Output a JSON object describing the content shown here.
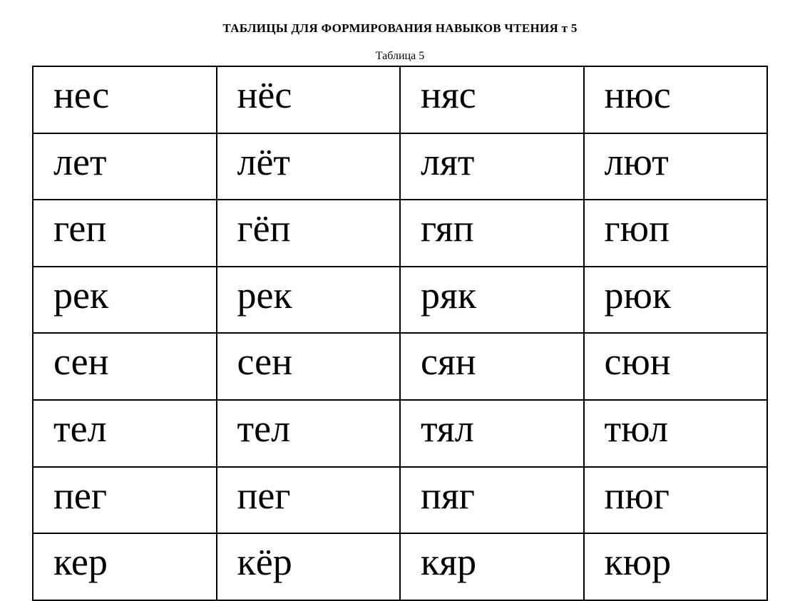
{
  "title": "ТАБЛИЦЫ ДЛЯ ФОРМИРОВАНИЯ НАВЫКОВ ЧТЕНИЯ т 5",
  "subtitle": "Таблица 5",
  "table": {
    "columns": 4,
    "column_width_percent": 25,
    "cell_fontsize": 54,
    "cell_font_family": "Times New Roman",
    "cell_color": "#000000",
    "border_color": "#000000",
    "border_width": 2,
    "background_color": "#ffffff",
    "text_align": "left",
    "rows": [
      [
        "нес",
        "нёс",
        "няс",
        "нюс"
      ],
      [
        "лет",
        "лёт",
        "лят",
        "лют"
      ],
      [
        "геп",
        "гёп",
        "гяп",
        "гюп"
      ],
      [
        "рек",
        "рек",
        "ряк",
        "рюк"
      ],
      [
        "сен",
        "сен",
        "сян",
        "сюн"
      ],
      [
        "тел",
        "тел",
        "тял",
        "тюл"
      ],
      [
        "пег",
        "пег",
        "пяг",
        "пюг"
      ],
      [
        "кер",
        "кёр",
        "кяр",
        "кюр"
      ]
    ]
  },
  "title_fontsize": 17,
  "title_fontweight": "bold",
  "subtitle_fontsize": 16
}
